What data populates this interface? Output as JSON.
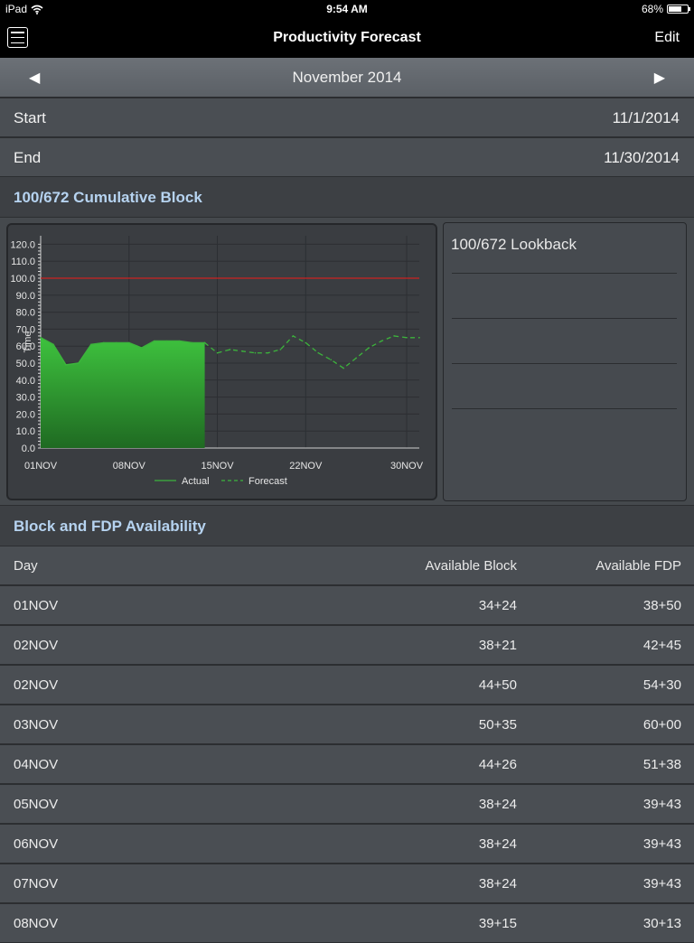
{
  "status": {
    "device": "iPad",
    "time": "9:54 AM",
    "battery": "68%",
    "battery_level": 0.68
  },
  "nav": {
    "title": "Productivity Forecast",
    "edit_label": "Edit"
  },
  "month": {
    "label": "November 2014",
    "prev_arrow": "◀",
    "next_arrow": "▶"
  },
  "range": {
    "start_label": "Start",
    "start_value": "11/1/2014",
    "end_label": "End",
    "end_value": "11/30/2014"
  },
  "chart_section": {
    "title": "100/672 Cumulative Block"
  },
  "lookback": {
    "title": "100/672 Lookback"
  },
  "table_section": {
    "title": "Block and FDP Availability"
  },
  "table": {
    "headers": {
      "day": "Day",
      "block": "Available Block",
      "fdp": "Available FDP"
    },
    "rows": [
      {
        "day": "01NOV",
        "block": "34+24",
        "fdp": "38+50"
      },
      {
        "day": "02NOV",
        "block": "38+21",
        "fdp": "42+45"
      },
      {
        "day": "02NOV",
        "block": "44+50",
        "fdp": "54+30"
      },
      {
        "day": "03NOV",
        "block": "50+35",
        "fdp": "60+00"
      },
      {
        "day": "04NOV",
        "block": "44+26",
        "fdp": "51+38"
      },
      {
        "day": "05NOV",
        "block": "38+24",
        "fdp": "39+43"
      },
      {
        "day": "06NOV",
        "block": "38+24",
        "fdp": "39+43"
      },
      {
        "day": "07NOV",
        "block": "38+24",
        "fdp": "39+43"
      },
      {
        "day": "08NOV",
        "block": "39+15",
        "fdp": "30+13"
      }
    ]
  },
  "chart_data": {
    "type": "area",
    "title": "",
    "xlabel": "",
    "ylabel": "Time",
    "ylim": [
      0,
      125
    ],
    "xlim": [
      1,
      31
    ],
    "y_ticks": [
      "0.0",
      "10.0",
      "20.0",
      "30.0",
      "40.0",
      "50.0",
      "60.0",
      "70.0",
      "80.0",
      "90.0",
      "100.0",
      "110.0",
      "120.0"
    ],
    "x_ticks": [
      {
        "day": 1,
        "label": "01NOV"
      },
      {
        "day": 8,
        "label": "08NOV"
      },
      {
        "day": 15,
        "label": "15NOV"
      },
      {
        "day": 22,
        "label": "22NOV"
      },
      {
        "day": 30,
        "label": "30NOV"
      }
    ],
    "limit": {
      "value": 100,
      "color": "#cc2222"
    },
    "series": [
      {
        "name": "Actual",
        "style": "area",
        "color": "#3cb43c",
        "x": [
          1,
          2,
          3,
          4,
          5,
          6,
          7,
          8,
          9,
          10,
          11,
          12,
          13,
          14
        ],
        "y": [
          65,
          61,
          49,
          50,
          61,
          62,
          62,
          62,
          59,
          63,
          63,
          63,
          62,
          62
        ]
      },
      {
        "name": "Forecast",
        "style": "dashed",
        "color": "#3cb43c",
        "x": [
          14,
          15,
          16,
          17,
          18,
          19,
          20,
          21,
          22,
          23,
          24,
          25,
          26,
          27,
          28,
          29,
          30,
          31
        ],
        "y": [
          62,
          56,
          58,
          57,
          56,
          56,
          58,
          66,
          62,
          56,
          52,
          47,
          53,
          59,
          63,
          66,
          65,
          65
        ]
      }
    ],
    "legend": "bottom-center",
    "grid": true
  }
}
